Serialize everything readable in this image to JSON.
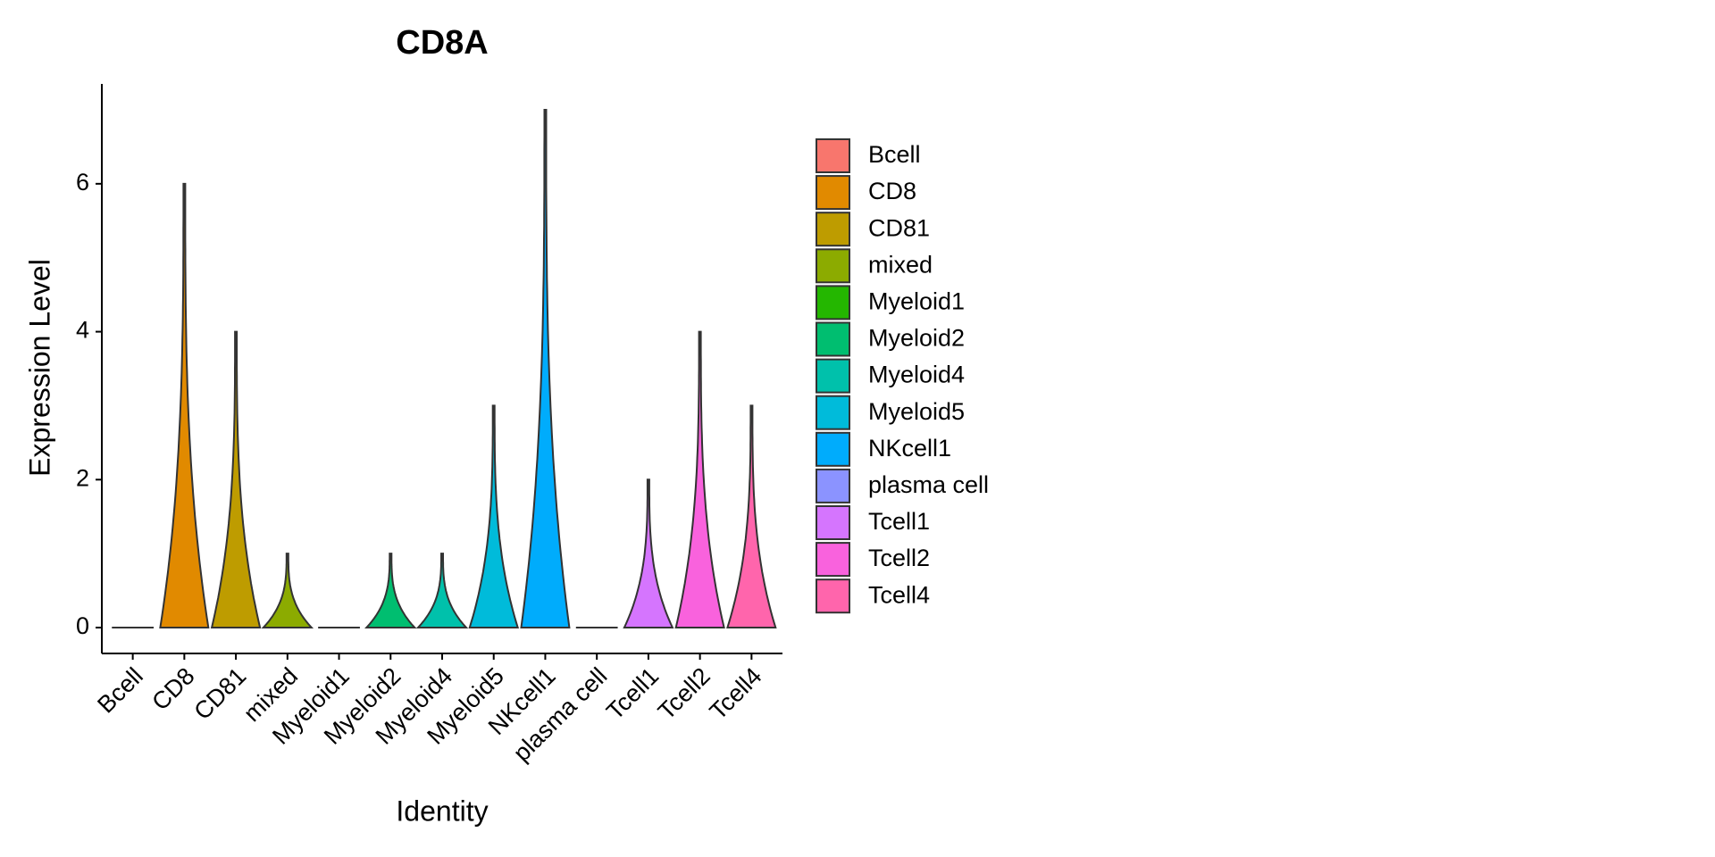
{
  "chart_data": {
    "type": "violin",
    "title": "CD8A",
    "x_label": "Identity",
    "y_label": "Expression Level",
    "categories": [
      "Bcell",
      "CD8",
      "CD81",
      "mixed",
      "Myeloid1",
      "Myeloid2",
      "Myeloid4",
      "Myeloid5",
      "NKcell1",
      "plasma cell",
      "Tcell1",
      "Tcell2",
      "Tcell4"
    ],
    "values": [
      0,
      6,
      4,
      1,
      0,
      1,
      1,
      3,
      7,
      0,
      2,
      4,
      3
    ],
    "colors": [
      "#F8766D",
      "#E18A00",
      "#BE9C00",
      "#8CAB00",
      "#24B700",
      "#00BE70",
      "#00C1AB",
      "#00BBDA",
      "#00ACFC",
      "#8B93FF",
      "#D575FE",
      "#F962DD",
      "#FF65AC"
    ],
    "ylim": [
      -0.35,
      7.35
    ],
    "yticks": [
      0,
      2,
      4,
      6
    ],
    "grid": false,
    "legend": "right"
  }
}
